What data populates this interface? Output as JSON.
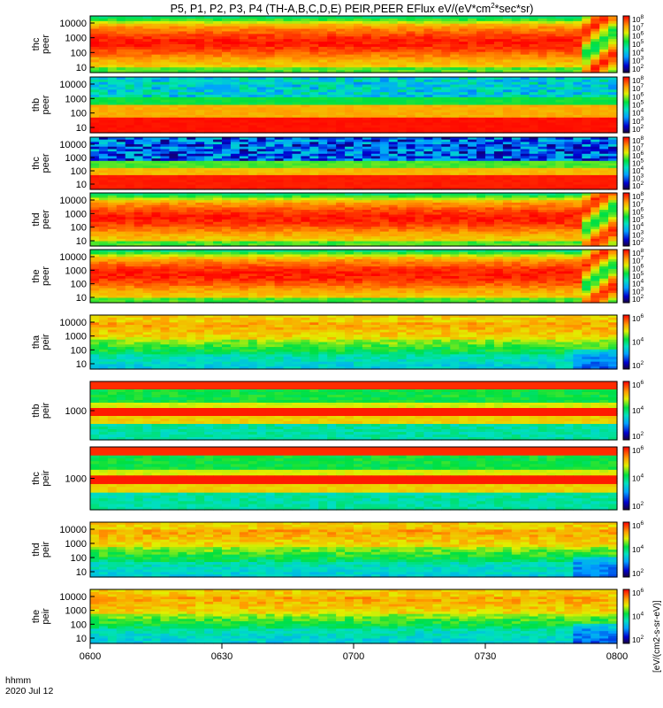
{
  "chart_data": {
    "type": "heatmap",
    "title": "P5, P1, P2, P3, P4 (TH-A,B,C,D,E) PEIR,PEER EFlux eV/(eV*cm2*sec*sr)",
    "title_parts": [
      "P5, P1, P2, P3, P4 (TH-A,B,C,D,E) PEIR,PEER EFlux eV/(eV*cm",
      "2",
      "*sec*sr)"
    ],
    "x_ticks": [
      "0600",
      "0630",
      "0700",
      "0730",
      "0800"
    ],
    "x_label_left": [
      "hhmm",
      "2020 Jul 12"
    ],
    "colorbar_ticks": {
      "electron": [
        "10^8",
        "10^7",
        "10^6",
        "10^5",
        "10^4",
        "10^3",
        "10^2"
      ],
      "ion": [
        "10^6",
        "10^4",
        "10^2"
      ]
    },
    "colorbar_label": "[eV/(cm2-s-sr-eV)]",
    "colors": {
      "low": "#00008b",
      "mid": "#00e060",
      "high": "#ff0000"
    },
    "panels": [
      {
        "label": [
          "thc",
          "peer"
        ],
        "y_ticks": [
          "10000",
          "1000",
          "100",
          "10"
        ],
        "pattern": "peer_main",
        "cb": "electron"
      },
      {
        "label": [
          "thb",
          "peer"
        ],
        "y_ticks": [
          "10000",
          "1000",
          "100",
          "10"
        ],
        "pattern": "peer_cyan",
        "cb": "electron"
      },
      {
        "label": [
          "thc",
          "peer"
        ],
        "y_ticks": [
          "10000",
          "1000",
          "100",
          "10"
        ],
        "pattern": "peer_blue",
        "cb": "electron"
      },
      {
        "label": [
          "thd",
          "peer"
        ],
        "y_ticks": [
          "10000",
          "1000",
          "100",
          "10"
        ],
        "pattern": "peer_main",
        "cb": "electron"
      },
      {
        "label": [
          "the",
          "peer"
        ],
        "y_ticks": [
          "10000",
          "1000",
          "100",
          "10"
        ],
        "pattern": "peer_main",
        "cb": "electron"
      },
      {
        "label": [
          "tha",
          "peir"
        ],
        "y_ticks": [
          "10000",
          "1000",
          "100",
          "10"
        ],
        "pattern": "peir_main",
        "cb": "ion"
      },
      {
        "label": [
          "thb",
          "peir"
        ],
        "y_ticks": [
          "1000"
        ],
        "pattern": "peir_band",
        "cb": "ion"
      },
      {
        "label": [
          "thc",
          "peir"
        ],
        "y_ticks": [
          "1000"
        ],
        "pattern": "peir_band",
        "cb": "ion"
      },
      {
        "label": [
          "thd",
          "peir"
        ],
        "y_ticks": [
          "10000",
          "1000",
          "100",
          "10"
        ],
        "pattern": "peir_main",
        "cb": "ion"
      },
      {
        "label": [
          "the",
          "peir"
        ],
        "y_ticks": [
          "10000",
          "1000",
          "100",
          "10"
        ],
        "pattern": "peir_main",
        "cb": "ion"
      }
    ]
  }
}
